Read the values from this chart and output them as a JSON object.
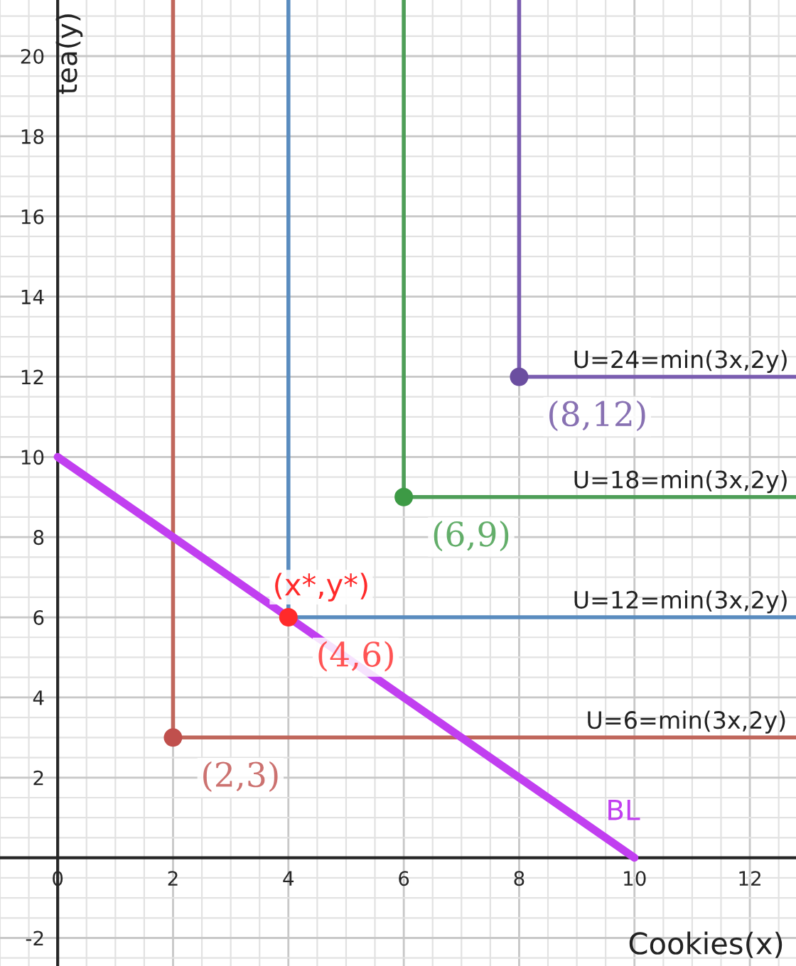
{
  "chart_data": {
    "type": "line",
    "xlabel": "Cookies(x)",
    "ylabel": "tea(y)",
    "xlim": [
      -1,
      12.8
    ],
    "ylim": [
      -2.7,
      21.4
    ],
    "xticks": [
      0,
      2,
      4,
      6,
      8,
      10,
      12
    ],
    "yticks": [
      -2,
      2,
      4,
      6,
      8,
      10,
      12,
      14,
      16,
      18,
      20
    ],
    "grid": true,
    "series": [
      {
        "color": "#c0675c",
        "x": [
          2,
          2,
          12.8
        ],
        "values": [
          21.4,
          3,
          3
        ]
      },
      {
        "color": "#5a8cbf",
        "x": [
          4,
          4,
          12.8
        ],
        "values": [
          21.4,
          6,
          6
        ]
      },
      {
        "color": "#4e9e58",
        "x": [
          6,
          6,
          12.8
        ],
        "values": [
          21.4,
          9,
          9
        ]
      },
      {
        "color": "#7a5db0",
        "x": [
          8,
          8,
          12.8
        ],
        "values": [
          21.4,
          12,
          12
        ]
      },
      {
        "name": "BL",
        "color": "#c13ff0",
        "x": [
          0,
          10
        ],
        "values": [
          10,
          0
        ]
      },
      {
        "type": "scatter",
        "x": [
          2,
          4,
          6,
          8
        ],
        "values": [
          3,
          6,
          9,
          12
        ],
        "colors": [
          "#c0504d",
          "#ff2a2a",
          "#3d9a45",
          "#6b4ea0"
        ]
      }
    ],
    "annotations": [
      {
        "text": "(2,3)",
        "x": 2,
        "y": 3
      },
      {
        "text": "(4,6)",
        "x": 4,
        "y": 6
      },
      {
        "text": "(x*,y*)",
        "x": 4,
        "y": 6
      },
      {
        "text": "(6,9)",
        "x": 6,
        "y": 9
      },
      {
        "text": "(8,12)",
        "x": 8,
        "y": 12
      },
      {
        "text": "U=6=min(3x,2y)",
        "x": 10.9,
        "y": 3
      },
      {
        "text": "U=12=min(3x,2y)",
        "x": 10.8,
        "y": 6
      },
      {
        "text": "U=18=min(3x,2y)",
        "x": 10.8,
        "y": 9
      },
      {
        "text": "U=24=min(3x,2y)",
        "x": 10.8,
        "y": 12
      }
    ]
  }
}
